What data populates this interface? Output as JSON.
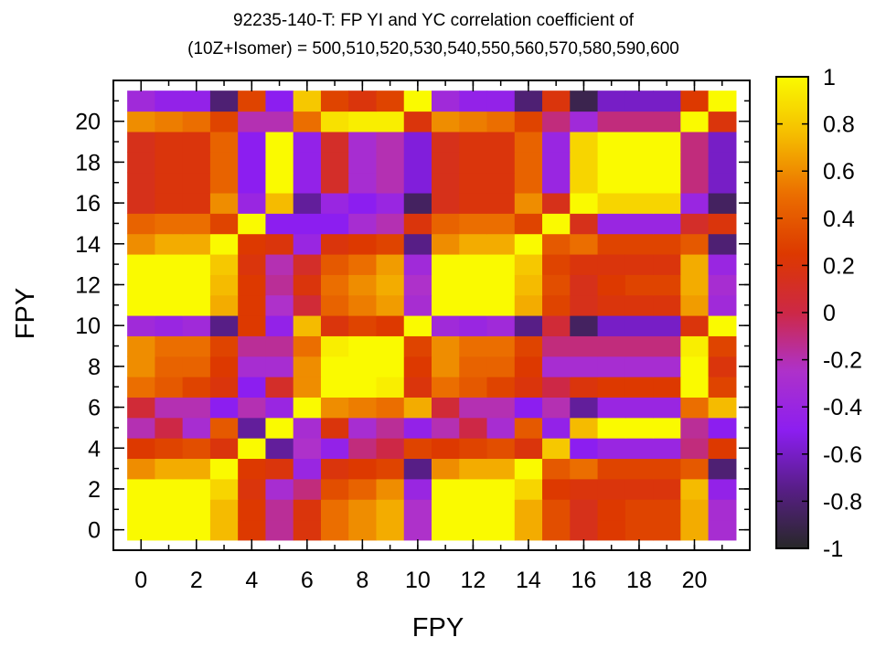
{
  "chart_data": {
    "type": "heatmap",
    "title_line1": "92235-140-T: FP YI and YC correlation coefficient of",
    "title_line2": "(10Z+Isomer) = 500,510,520,530,540,550,560,570,580,590,600",
    "xlabel": "FPY",
    "ylabel": "FPY",
    "x_ticks": [
      "0",
      "2",
      "4",
      "6",
      "8",
      "10",
      "12",
      "14",
      "16",
      "18",
      "20"
    ],
    "y_ticks": [
      "0",
      "2",
      "4",
      "6",
      "8",
      "10",
      "12",
      "14",
      "16",
      "18",
      "20"
    ],
    "x_range": [
      -1,
      22
    ],
    "y_range": [
      -1,
      22
    ],
    "color_range": [
      -1,
      1
    ],
    "colorbar_ticks": [
      "-1",
      "-0.8",
      "-0.6",
      "-0.4",
      "-0.2",
      "0",
      "0.2",
      "0.4",
      "0.6",
      "0.8",
      "1"
    ],
    "colormap": "gnuplot pm3d 30,31,32 (black-purple-red-orange-yellow)",
    "matrix": [
      [
        1,
        1,
        1,
        0.75,
        0.25,
        -0.15,
        0.2,
        0.5,
        0.6,
        0.7,
        -0.25,
        1,
        1,
        1,
        0.7,
        0.35,
        0.15,
        0.25,
        0.3,
        0.3,
        0.7,
        -0.3
      ],
      [
        1,
        1,
        1,
        0.75,
        0.25,
        -0.15,
        0.2,
        0.5,
        0.6,
        0.7,
        -0.25,
        1,
        1,
        1,
        0.7,
        0.35,
        0.15,
        0.25,
        0.3,
        0.3,
        0.7,
        -0.3
      ],
      [
        1,
        1,
        1,
        0.85,
        0.2,
        -0.3,
        -0.1,
        0.35,
        0.45,
        0.6,
        -0.4,
        1,
        1,
        1,
        0.85,
        0.25,
        0.2,
        0.2,
        0.2,
        0.2,
        0.75,
        -0.45
      ],
      [
        0.6,
        0.7,
        0.7,
        1,
        0.25,
        0.2,
        -0.4,
        0.2,
        0.25,
        0.3,
        -0.75,
        0.6,
        0.7,
        0.7,
        1,
        0.4,
        0.5,
        0.3,
        0.3,
        0.3,
        0.4,
        -0.8
      ],
      [
        0.25,
        0.3,
        0.35,
        0.2,
        1,
        -0.7,
        -0.25,
        -0.45,
        -0.1,
        0,
        0.3,
        0.25,
        0.3,
        0.35,
        0.2,
        0.8,
        -0.5,
        -0.4,
        -0.4,
        -0.4,
        -0.1,
        0.25
      ],
      [
        -0.2,
        0,
        -0.3,
        0.4,
        -0.7,
        1,
        -0.3,
        0.2,
        -0.3,
        -0.15,
        -0.45,
        -0.2,
        0,
        -0.3,
        0.4,
        -0.45,
        0.75,
        1,
        1,
        1,
        -0.15,
        -0.5
      ],
      [
        0.05,
        -0.2,
        -0.2,
        -0.5,
        -0.2,
        -0.4,
        1,
        0.6,
        0.55,
        0.5,
        0.7,
        0.05,
        -0.2,
        -0.2,
        -0.5,
        -0.2,
        -0.7,
        -0.4,
        -0.4,
        -0.4,
        0.5,
        0.75
      ],
      [
        0.5,
        0.4,
        0.3,
        0.2,
        -0.5,
        0.1,
        0.6,
        1,
        1,
        0.95,
        0.2,
        0.5,
        0.4,
        0.3,
        0.2,
        0,
        0.2,
        0.25,
        0.25,
        0.25,
        1,
        0.3
      ],
      [
        0.6,
        0.45,
        0.45,
        0.25,
        -0.3,
        -0.3,
        0.6,
        1,
        1,
        1,
        0.25,
        0.6,
        0.45,
        0.45,
        0.25,
        -0.3,
        -0.3,
        -0.3,
        -0.3,
        -0.3,
        1,
        0.2
      ],
      [
        0.6,
        0.5,
        0.5,
        0.3,
        -0.15,
        -0.15,
        0.5,
        0.95,
        1,
        1,
        0.3,
        0.6,
        0.5,
        0.5,
        0.3,
        -0.1,
        -0.1,
        -0.1,
        -0.1,
        -0.1,
        0.95,
        0.3
      ],
      [
        -0.35,
        -0.4,
        -0.35,
        -0.75,
        0.25,
        -0.45,
        0.75,
        0.2,
        0.3,
        0.25,
        1,
        -0.35,
        -0.4,
        -0.35,
        -0.75,
        0.05,
        -0.85,
        -0.6,
        -0.6,
        -0.6,
        0.2,
        1
      ],
      [
        1,
        1,
        1,
        0.7,
        0.25,
        -0.25,
        0.05,
        0.45,
        0.55,
        0.65,
        -0.3,
        1,
        1,
        1,
        0.7,
        0.3,
        0.15,
        0.2,
        0.2,
        0.2,
        0.65,
        -0.35
      ],
      [
        1,
        1,
        1,
        0.75,
        0.25,
        -0.15,
        0.2,
        0.5,
        0.6,
        0.7,
        -0.25,
        1,
        1,
        1,
        0.75,
        0.35,
        0.15,
        0.25,
        0.3,
        0.3,
        0.7,
        -0.3
      ],
      [
        1,
        1,
        1,
        0.8,
        0.2,
        -0.2,
        0.1,
        0.4,
        0.5,
        0.65,
        -0.35,
        1,
        1,
        1,
        0.8,
        0.3,
        0.2,
        0.2,
        0.2,
        0.2,
        0.7,
        -0.4
      ],
      [
        0.6,
        0.7,
        0.7,
        1,
        0.25,
        0.2,
        -0.4,
        0.2,
        0.25,
        0.3,
        -0.75,
        0.6,
        0.7,
        0.7,
        1,
        0.4,
        0.5,
        0.3,
        0.3,
        0.3,
        0.4,
        -0.8
      ],
      [
        0.45,
        0.5,
        0.5,
        0.3,
        1,
        -0.5,
        -0.5,
        -0.5,
        -0.3,
        -0.2,
        0.2,
        0.45,
        0.5,
        0.5,
        0.3,
        1,
        0.15,
        -0.4,
        -0.4,
        -0.4,
        0.1,
        0.2
      ],
      [
        0.15,
        0.2,
        0.2,
        0.6,
        -0.4,
        0.75,
        -0.7,
        -0.4,
        -0.5,
        -0.4,
        -0.85,
        0.15,
        0.2,
        0.2,
        0.6,
        0.15,
        1,
        0.85,
        0.85,
        0.85,
        -0.4,
        -0.85
      ],
      [
        0.15,
        0.2,
        0.2,
        0.45,
        -0.5,
        1,
        -0.45,
        0.1,
        -0.3,
        -0.2,
        -0.55,
        0.15,
        0.2,
        0.2,
        0.45,
        -0.4,
        0.85,
        1,
        1,
        1,
        -0.1,
        -0.6
      ],
      [
        0.15,
        0.2,
        0.2,
        0.45,
        -0.5,
        1,
        -0.45,
        0.1,
        -0.3,
        -0.2,
        -0.55,
        0.15,
        0.2,
        0.2,
        0.45,
        -0.4,
        0.85,
        1,
        1,
        1,
        -0.1,
        -0.6
      ],
      [
        0.15,
        0.2,
        0.2,
        0.45,
        -0.5,
        1,
        -0.45,
        0.1,
        -0.3,
        -0.2,
        -0.55,
        0.15,
        0.2,
        0.2,
        0.45,
        -0.4,
        0.85,
        1,
        1,
        1,
        -0.1,
        -0.6
      ],
      [
        0.6,
        0.55,
        0.5,
        0.3,
        -0.2,
        -0.2,
        0.5,
        0.9,
        0.95,
        0.95,
        0.2,
        0.6,
        0.55,
        0.5,
        0.3,
        -0.1,
        -0.35,
        -0.1,
        -0.1,
        -0.1,
        1,
        0.2
      ],
      [
        -0.35,
        -0.45,
        -0.45,
        -0.8,
        0.3,
        -0.5,
        0.8,
        0.3,
        0.2,
        0.3,
        1,
        -0.35,
        -0.45,
        -0.45,
        -0.8,
        0.2,
        -0.9,
        -0.6,
        -0.6,
        -0.6,
        0.25,
        1
      ]
    ]
  }
}
